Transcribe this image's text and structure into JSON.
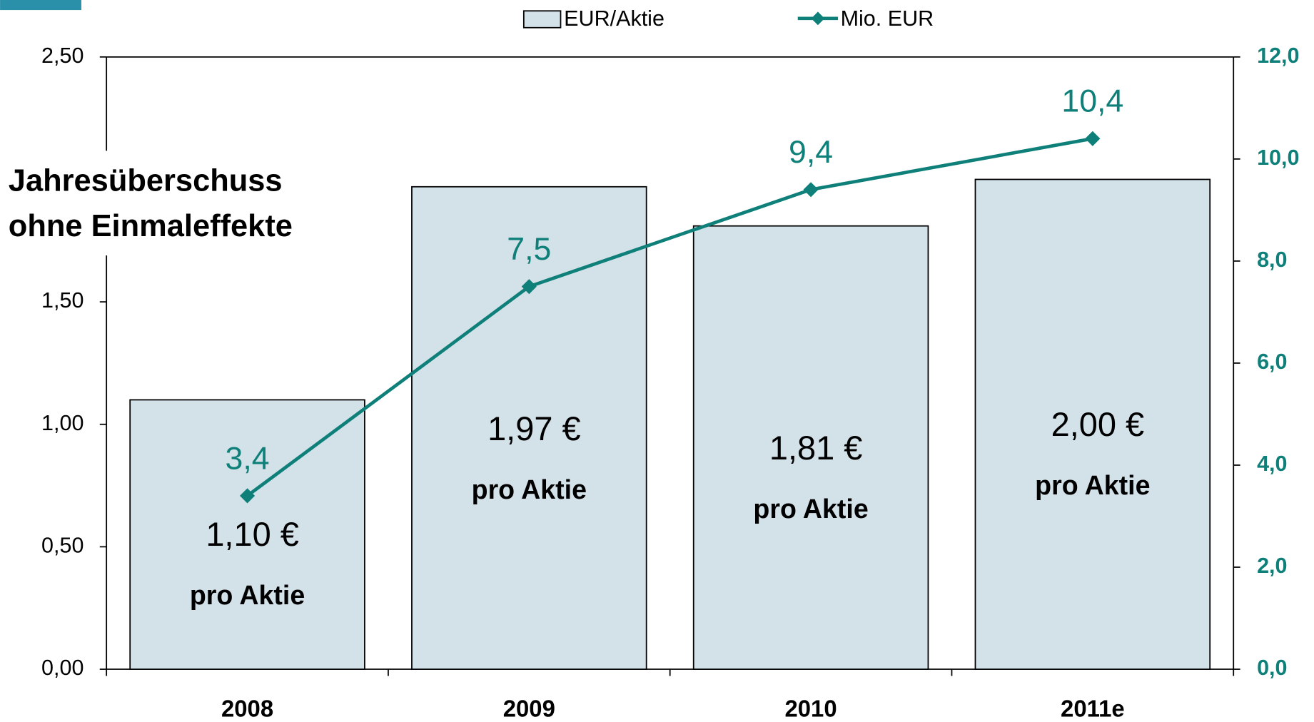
{
  "chart_data": {
    "type": "bar",
    "title": [
      "Jahresüberschuss",
      "ohne Einmaleffekte"
    ],
    "categories": [
      "2008",
      "2009",
      "2010",
      "2011e"
    ],
    "bar_note": "pro Aktie",
    "series": [
      {
        "name": "EUR/Aktie",
        "type": "bar",
        "color": "#d3e1e8",
        "values": [
          1.1,
          1.97,
          1.81,
          2.0
        ],
        "value_labels": [
          "1,10 €",
          "1,97 €",
          "1,81 €",
          "2,00 €"
        ]
      },
      {
        "name": "Mio. EUR",
        "type": "line",
        "axis": "y2",
        "color": "#0e8079",
        "values": [
          3.4,
          7.5,
          9.4,
          10.4
        ],
        "value_labels": [
          "3,4",
          "7,5",
          "9,4",
          "10,4"
        ]
      }
    ],
    "ylim": [
      0,
      2.5
    ],
    "yticks": [
      {
        "value": 0,
        "label": "0,00"
      },
      {
        "value": 0.5,
        "label": "0,50"
      },
      {
        "value": 1,
        "label": "1,00"
      },
      {
        "value": 1.5,
        "label": "1,50"
      },
      {
        "value": 2.5,
        "label": "2,50"
      }
    ],
    "y2lim": [
      0,
      12
    ],
    "y2ticks": [
      {
        "value": 0,
        "label": "0,0"
      },
      {
        "value": 2,
        "label": "2,0"
      },
      {
        "value": 4,
        "label": "4,0"
      },
      {
        "value": 6,
        "label": "6,0"
      },
      {
        "value": 8,
        "label": "8,0"
      },
      {
        "value": 10,
        "label": "10,0"
      },
      {
        "value": 12,
        "label": "12,0"
      }
    ],
    "legend": "top"
  }
}
